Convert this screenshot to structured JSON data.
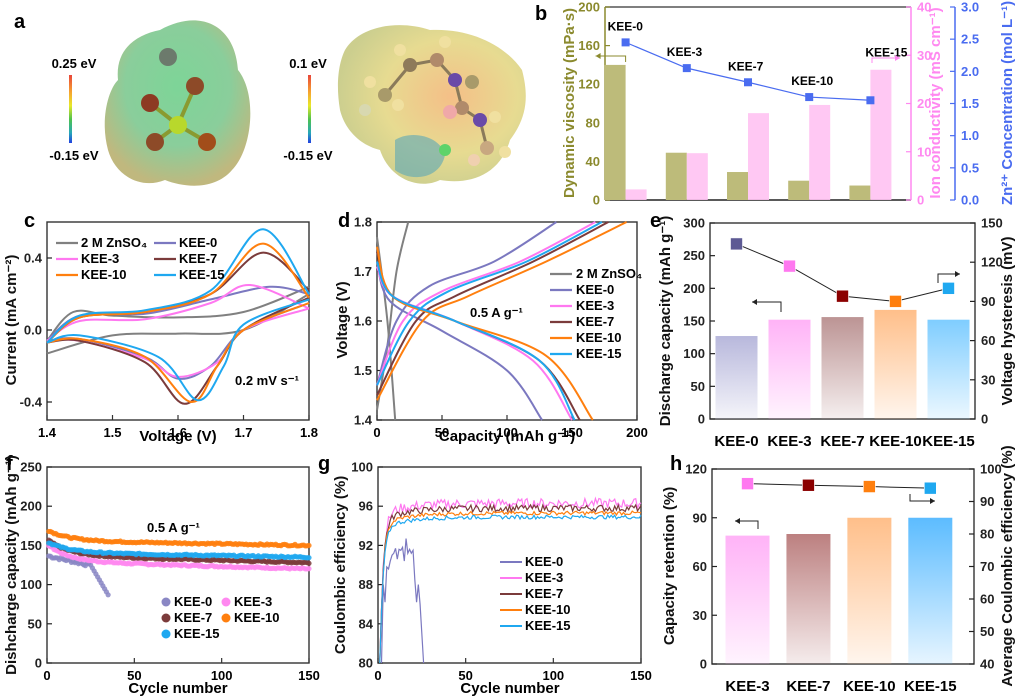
{
  "panel_labels": {
    "a": "a",
    "b": "b",
    "c": "c",
    "d": "d",
    "e": "e",
    "f": "f",
    "g": "g",
    "h": "h"
  },
  "panel_a": {
    "left_scale": {
      "max": "0.25 eV",
      "min": "-0.15 eV"
    },
    "right_scale": {
      "max": "0.1 eV",
      "min": "-0.15 eV"
    }
  },
  "chart_data": [
    {
      "id": "b",
      "type": "bar",
      "categories": [
        "KEE-0",
        "KEE-3",
        "KEE-7",
        "KEE-10",
        "KEE-15"
      ],
      "series": [
        {
          "name": "Dynamic viscosity",
          "axis": "left",
          "color": "#9b9a4e",
          "values": [
            140,
            49,
            29,
            20,
            15
          ]
        },
        {
          "name": "Ion conductivity",
          "axis": "right1",
          "color": "#ff9be8",
          "values": [
            2.2,
            9.7,
            18,
            19.7,
            27
          ]
        },
        {
          "name": "Zn2+ Concentration",
          "axis": "right2",
          "type": "line",
          "color": "#4a6cf0",
          "values": [
            2.45,
            2.05,
            1.83,
            1.6,
            1.55
          ]
        }
      ],
      "ylabel": "Dynamic viscosity (mPa·s)",
      "ylim": [
        0,
        200
      ],
      "yticks": [
        "0",
        "40",
        "80",
        "120",
        "160",
        "200"
      ],
      "y2label": "Ion conductivity (mS cm⁻¹)",
      "y2lim": [
        0,
        40
      ],
      "y2ticks": [
        "0",
        "10",
        "20",
        "30",
        "40"
      ],
      "y3label": "Zn²⁺ Concentration (mol L⁻¹)",
      "y3lim": [
        0,
        3
      ],
      "y3ticks": [
        "0.0",
        "0.5",
        "1.0",
        "1.5",
        "2.0",
        "2.5",
        "3.0"
      ]
    },
    {
      "id": "c",
      "type": "line",
      "xlabel": "Voltage (V)",
      "ylabel": "Current (mA cm⁻²)",
      "xlim": [
        1.4,
        1.8
      ],
      "ylim": [
        -0.5,
        0.6
      ],
      "xticks": [
        "1.4",
        "1.5",
        "1.6",
        "1.7",
        "1.8"
      ],
      "yticks": [
        "-0.4",
        "0.0",
        "0.4"
      ],
      "annotation": "0.2 mV s⁻¹",
      "series": [
        {
          "name": "2 M ZnSO₄",
          "color": "#808080",
          "peak_ox": [
            1.8,
            0.22
          ],
          "peak_red": [
            1.4,
            -0.13
          ],
          "upper": [
            [
              1.4,
              -0.06
            ],
            [
              1.44,
              0.1
            ],
            [
              1.5,
              0.08
            ],
            [
              1.6,
              0.07
            ],
            [
              1.7,
              0.1
            ],
            [
              1.8,
              0.24
            ]
          ],
          "lower": [
            [
              1.8,
              0.2
            ],
            [
              1.7,
              0.0
            ],
            [
              1.6,
              -0.02
            ],
            [
              1.5,
              -0.03
            ],
            [
              1.4,
              -0.13
            ]
          ]
        },
        {
          "name": "KEE-0",
          "color": "#7b78c0",
          "upper": [
            [
              1.4,
              -0.06
            ],
            [
              1.45,
              0.08
            ],
            [
              1.55,
              0.09
            ],
            [
              1.65,
              0.17
            ],
            [
              1.74,
              0.24
            ],
            [
              1.8,
              0.2
            ]
          ],
          "lower": [
            [
              1.8,
              0.15
            ],
            [
              1.7,
              0.0
            ],
            [
              1.65,
              -0.2
            ],
            [
              1.6,
              -0.27
            ],
            [
              1.55,
              -0.15
            ],
            [
              1.45,
              -0.05
            ],
            [
              1.4,
              -0.06
            ]
          ]
        },
        {
          "name": "KEE-3",
          "color": "#ff78f0",
          "upper": [
            [
              1.4,
              -0.06
            ],
            [
              1.45,
              0.05
            ],
            [
              1.55,
              0.06
            ],
            [
              1.65,
              0.15
            ],
            [
              1.71,
              0.25
            ],
            [
              1.8,
              0.12
            ]
          ],
          "lower": [
            [
              1.8,
              0.12
            ],
            [
              1.7,
              0.0
            ],
            [
              1.66,
              -0.18
            ],
            [
              1.6,
              -0.26
            ],
            [
              1.55,
              -0.16
            ],
            [
              1.45,
              -0.06
            ],
            [
              1.4,
              -0.06
            ]
          ]
        },
        {
          "name": "KEE-7",
          "color": "#7b3b3b",
          "upper": [
            [
              1.4,
              -0.07
            ],
            [
              1.45,
              0.07
            ],
            [
              1.55,
              0.1
            ],
            [
              1.65,
              0.2
            ],
            [
              1.73,
              0.43
            ],
            [
              1.8,
              0.22
            ]
          ],
          "lower": [
            [
              1.8,
              0.18
            ],
            [
              1.7,
              0.0
            ],
            [
              1.66,
              -0.2
            ],
            [
              1.61,
              -0.41
            ],
            [
              1.55,
              -0.18
            ],
            [
              1.45,
              -0.06
            ],
            [
              1.4,
              -0.07
            ]
          ]
        },
        {
          "name": "KEE-10",
          "color": "#ff7f0e",
          "upper": [
            [
              1.4,
              -0.07
            ],
            [
              1.45,
              0.07
            ],
            [
              1.55,
              0.1
            ],
            [
              1.65,
              0.2
            ],
            [
              1.73,
              0.48
            ],
            [
              1.8,
              0.18
            ]
          ],
          "lower": [
            [
              1.8,
              0.15
            ],
            [
              1.7,
              0.0
            ],
            [
              1.66,
              -0.2
            ],
            [
              1.62,
              -0.4
            ],
            [
              1.55,
              -0.15
            ],
            [
              1.45,
              -0.05
            ],
            [
              1.4,
              -0.07
            ]
          ]
        },
        {
          "name": "KEE-15",
          "color": "#1fa8f0",
          "upper": [
            [
              1.4,
              -0.07
            ],
            [
              1.45,
              0.08
            ],
            [
              1.55,
              0.11
            ],
            [
              1.65,
              0.22
            ],
            [
              1.73,
              0.56
            ],
            [
              1.8,
              0.2
            ]
          ],
          "lower": [
            [
              1.8,
              0.17
            ],
            [
              1.7,
              0.03
            ],
            [
              1.67,
              -0.2
            ],
            [
              1.63,
              -0.39
            ],
            [
              1.57,
              -0.15
            ],
            [
              1.45,
              -0.03
            ],
            [
              1.4,
              -0.07
            ]
          ]
        }
      ]
    },
    {
      "id": "d",
      "type": "line",
      "xlabel": "Capacity (mAh g⁻¹)",
      "ylabel": "Voltage (V)",
      "xlim": [
        0,
        200
      ],
      "ylim": [
        1.4,
        1.8
      ],
      "xticks": [
        "0",
        "50",
        "100",
        "150",
        "200"
      ],
      "yticks": [
        "1.4",
        "1.5",
        "1.6",
        "1.7",
        "1.8"
      ],
      "annotation": "0.5 A g⁻¹",
      "series": [
        {
          "name": "2 M ZnSO₄",
          "color": "#808080",
          "charge": [
            [
              0,
              1.42
            ],
            [
              8,
              1.55
            ],
            [
              15,
              1.7
            ],
            [
              24,
              1.8
            ]
          ],
          "discharge": [
            [
              0,
              1.77
            ],
            [
              8,
              1.6
            ],
            [
              14,
              1.4
            ]
          ]
        },
        {
          "name": "KEE-0",
          "color": "#7b78c0",
          "charge": [
            [
              0,
              1.47
            ],
            [
              15,
              1.6
            ],
            [
              40,
              1.67
            ],
            [
              90,
              1.72
            ],
            [
              138,
              1.8
            ]
          ],
          "discharge": [
            [
              0,
              1.72
            ],
            [
              10,
              1.64
            ],
            [
              50,
              1.58
            ],
            [
              100,
              1.5
            ],
            [
              127,
              1.4
            ]
          ]
        },
        {
          "name": "KEE-3",
          "color": "#ff78f0",
          "charge": [
            [
              0,
              1.47
            ],
            [
              20,
              1.6
            ],
            [
              50,
              1.66
            ],
            [
              110,
              1.72
            ],
            [
              168,
              1.8
            ]
          ],
          "discharge": [
            [
              0,
              1.71
            ],
            [
              12,
              1.65
            ],
            [
              60,
              1.6
            ],
            [
              120,
              1.52
            ],
            [
              150,
              1.4
            ]
          ]
        },
        {
          "name": "KEE-7",
          "color": "#7b3b3b",
          "charge": [
            [
              0,
              1.45
            ],
            [
              30,
              1.6
            ],
            [
              60,
              1.65
            ],
            [
              120,
              1.72
            ],
            [
              178,
              1.8
            ]
          ],
          "discharge": [
            [
              0,
              1.74
            ],
            [
              12,
              1.65
            ],
            [
              60,
              1.6
            ],
            [
              125,
              1.52
            ],
            [
              156,
              1.4
            ]
          ]
        },
        {
          "name": "KEE-10",
          "color": "#ff7f0e",
          "charge": [
            [
              0,
              1.44
            ],
            [
              35,
              1.6
            ],
            [
              70,
              1.65
            ],
            [
              130,
              1.72
            ],
            [
              192,
              1.8
            ]
          ],
          "discharge": [
            [
              0,
              1.75
            ],
            [
              12,
              1.65
            ],
            [
              60,
              1.6
            ],
            [
              130,
              1.53
            ],
            [
              166,
              1.4
            ]
          ]
        },
        {
          "name": "KEE-15",
          "color": "#1fa8f0",
          "charge": [
            [
              0,
              1.47
            ],
            [
              25,
              1.6
            ],
            [
              55,
              1.66
            ],
            [
              115,
              1.72
            ],
            [
              173,
              1.8
            ]
          ],
          "discharge": [
            [
              0,
              1.72
            ],
            [
              12,
              1.65
            ],
            [
              60,
              1.6
            ],
            [
              125,
              1.52
            ],
            [
              152,
              1.4
            ]
          ]
        }
      ]
    },
    {
      "id": "e",
      "type": "bar",
      "categories": [
        "KEE-0",
        "KEE-3",
        "KEE-7",
        "KEE-10",
        "KEE-15"
      ],
      "series": [
        {
          "name": "Discharge capacity",
          "axis": "left",
          "values": [
            127,
            152,
            156,
            167,
            152
          ],
          "colors": [
            "#b8b8dc",
            "#ffb3f7",
            "#bc9494",
            "#ffbf8a",
            "#7fcdff"
          ]
        },
        {
          "name": "Voltage hysteresis",
          "axis": "right",
          "type": "line",
          "values": [
            134,
            117,
            94,
            90,
            100
          ],
          "colors": [
            "#5d5a94",
            "#ff78f0",
            "#8b0000",
            "#ff7f0e",
            "#1fa8f0"
          ]
        }
      ],
      "ylabel": "Discharge capacity (mAh g⁻¹)",
      "ylim": [
        0,
        300
      ],
      "yticks": [
        "0",
        "50",
        "100",
        "150",
        "200",
        "250",
        "300"
      ],
      "y2label": "Voltage hysteresis (mV)",
      "y2lim": [
        0,
        150
      ],
      "y2ticks": [
        "0",
        "30",
        "60",
        "90",
        "120",
        "150"
      ]
    },
    {
      "id": "f",
      "type": "scatter",
      "xlabel": "Cycle number",
      "ylabel": "Dishcharge capacity (mAh g⁻¹)",
      "xlim": [
        0,
        150
      ],
      "ylim": [
        0,
        250
      ],
      "xticks": [
        "0",
        "50",
        "100",
        "150"
      ],
      "yticks": [
        "0",
        "50",
        "100",
        "150",
        "200",
        "250"
      ],
      "annotation": "0.5 A g⁻¹",
      "series": [
        {
          "name": "KEE-0",
          "color": "#8a87c4",
          "start": 137,
          "end": 87,
          "cycles": 35
        },
        {
          "name": "KEE-3",
          "color": "#ff88f0",
          "start": 152,
          "end": 120,
          "cycles": 150
        },
        {
          "name": "KEE-7",
          "color": "#7b3b3b",
          "start": 158,
          "end": 128,
          "cycles": 150
        },
        {
          "name": "KEE-10",
          "color": "#ff7f0e",
          "start": 170,
          "end": 150,
          "cycles": 150
        },
        {
          "name": "KEE-15",
          "color": "#1fa8f0",
          "start": 155,
          "end": 135,
          "cycles": 150
        }
      ]
    },
    {
      "id": "g",
      "type": "line",
      "xlabel": "Cycle number",
      "ylabel": "Coulombic efficiency (%)",
      "xlim": [
        0,
        150
      ],
      "ylim": [
        80,
        100
      ],
      "xticks": [
        "0",
        "50",
        "100",
        "150"
      ],
      "yticks": [
        "80",
        "84",
        "88",
        "92",
        "96",
        "100"
      ],
      "series": [
        {
          "name": "KEE-0",
          "color": "#7b78c0",
          "plateau": 91.5,
          "cycles": 28
        },
        {
          "name": "KEE-3",
          "color": "#ff78f0",
          "plateau": 96.3,
          "cycles": 150
        },
        {
          "name": "KEE-7",
          "color": "#7b3b3b",
          "plateau": 95.8,
          "cycles": 150
        },
        {
          "name": "KEE-10",
          "color": "#ff7f0e",
          "plateau": 95.3,
          "cycles": 150
        },
        {
          "name": "KEE-15",
          "color": "#1fa8f0",
          "plateau": 94.9,
          "cycles": 150
        }
      ]
    },
    {
      "id": "h",
      "type": "bar",
      "categories": [
        "KEE-3",
        "KEE-7",
        "KEE-10",
        "KEE-15"
      ],
      "series": [
        {
          "name": "Capacity retention",
          "axis": "left",
          "values": [
            79,
            80,
            90,
            90
          ],
          "colors": [
            "#ffb3f7",
            "#bc8080",
            "#ffbf8a",
            "#5cbcff"
          ]
        },
        {
          "name": "Average Coulombic efficiency",
          "axis": "right",
          "type": "line",
          "values": [
            95.5,
            95.0,
            94.6,
            94.1
          ],
          "colors": [
            "#ff78f0",
            "#8b0000",
            "#ff7f0e",
            "#1fa8f0"
          ]
        }
      ],
      "ylabel": "Capacity retention (%)",
      "ylim": [
        0,
        120
      ],
      "yticks": [
        "0",
        "30",
        "60",
        "90",
        "120"
      ],
      "y2label": "Average Coulombic efficiency (%)",
      "y2lim": [
        40,
        100
      ],
      "y2ticks": [
        "40",
        "50",
        "60",
        "70",
        "80",
        "90",
        "100"
      ]
    }
  ]
}
